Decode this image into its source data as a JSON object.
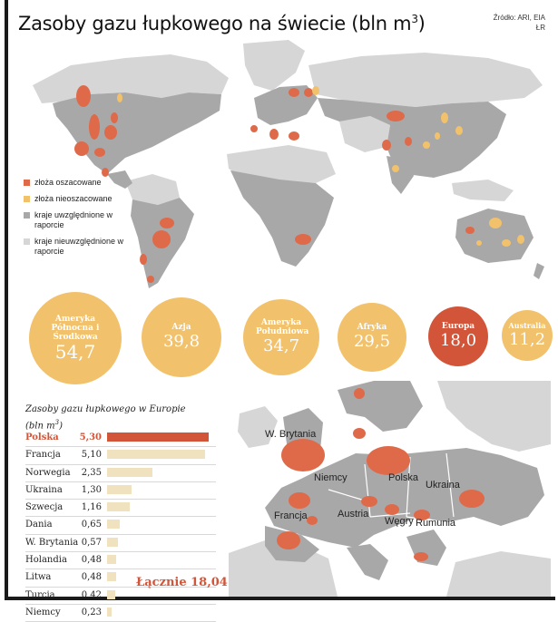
{
  "title": "Zasoby gazu łupkowego na świecie (bln m",
  "title_sup": "3",
  "title_close": ")",
  "source_line1": "Źródło: ARI, EIA",
  "source_line2": "ŁR",
  "colors": {
    "estimated": "#de6a4a",
    "not_estimated": "#f2c16b",
    "included": "#a8a8a8",
    "not_included": "#d6d6d6"
  },
  "legend": [
    {
      "label": "złoża oszacowane",
      "color": "#de6a4a"
    },
    {
      "label": "złoża nieoszacowane",
      "color": "#f2c16b"
    },
    {
      "label": "kraje uwzględnione w raporcie",
      "color": "#a8a8a8"
    },
    {
      "label": "kraje nieuwzględnione w raporcie",
      "color": "#d6d6d6"
    }
  ],
  "regions": [
    {
      "label": "Ameryka Północna i Środkowa",
      "value": "54,7",
      "value_num": 54.7,
      "color": "#f2c16b"
    },
    {
      "label": "Azja",
      "value": "39,8",
      "value_num": 39.8,
      "color": "#f2c16b"
    },
    {
      "label": "Ameryka Południowa",
      "value": "34,7",
      "value_num": 34.7,
      "color": "#f2c16b"
    },
    {
      "label": "Afryka",
      "value": "29,5",
      "value_num": 29.5,
      "color": "#f2c16b"
    },
    {
      "label": "Europa",
      "value": "18,0",
      "value_num": 18.0,
      "color": "#d2553a"
    },
    {
      "label": "Australia",
      "value": "11,2",
      "value_num": 11.2,
      "color": "#f2c16b"
    }
  ],
  "europe_title_line1": "Zasoby gazu łupkowego w Europie",
  "europe_title_line2": "(bln m",
  "europe_title_sup": "3",
  "europe_title_close": ")",
  "chart_data": {
    "type": "bar",
    "title": "Zasoby gazu łupkowego w Europie (bln m3)",
    "categories": [
      "Polska",
      "Francja",
      "Norwegia",
      "Ukraina",
      "Szwecja",
      "Dania",
      "W. Brytania",
      "Holandia",
      "Litwa",
      "Turcja",
      "Niemcy"
    ],
    "values": [
      5.3,
      5.1,
      2.35,
      1.3,
      1.16,
      0.65,
      0.57,
      0.48,
      0.48,
      0.42,
      0.23
    ],
    "value_labels": [
      "5,30",
      "5,10",
      "2,35",
      "1,30",
      "1,16",
      "0,65",
      "0,57",
      "0,48",
      "0,48",
      "0,42",
      "0,23"
    ],
    "total_label": "Łącznie 18,04",
    "total": 18.04
  },
  "europe_map": {
    "labels": [
      "W. Brytania",
      "Niemcy",
      "Polska",
      "Ukraina",
      "Francja",
      "Austria",
      "Węgry",
      "Rumunia"
    ]
  }
}
